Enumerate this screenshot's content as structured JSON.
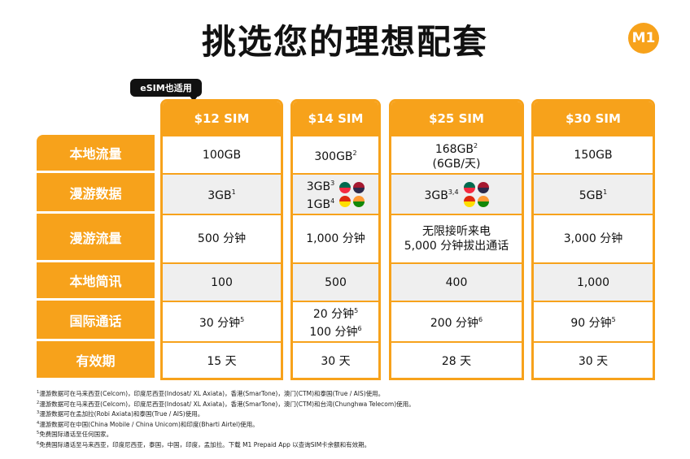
{
  "header": {
    "title": "挑选您的理想配套",
    "logo": "M1"
  },
  "badge": "eSIM也适用",
  "table": {
    "columns": [
      "$12 SIM",
      "$14 SIM",
      "$25 SIM",
      "$30 SIM"
    ],
    "rows": [
      {
        "label": "本地流量",
        "cells": [
          [
            {
              "text": "100GB"
            }
          ],
          [
            {
              "text": "300GB",
              "sup": "2"
            }
          ],
          [
            {
              "text": "168GB",
              "sup": "2"
            },
            {
              "text": "(6GB/天)"
            }
          ],
          [
            {
              "text": "150GB"
            }
          ]
        ]
      },
      {
        "label": "漫游数据",
        "cells": [
          [
            {
              "text": "3GB",
              "sup": "1"
            }
          ],
          [
            {
              "text": "3GB",
              "sup": "3"
            },
            {
              "text": "1GB",
              "sup": "4"
            }
          ],
          [
            {
              "text": "3GB",
              "sup": "3,4"
            }
          ],
          [
            {
              "text": "5GB",
              "sup": "1"
            }
          ]
        ]
      },
      {
        "label": "漫游流量",
        "cells": [
          [
            {
              "text": "500 分钟"
            }
          ],
          [
            {
              "text": "1,000 分钟"
            }
          ],
          [
            {
              "text": "无限接听来电"
            },
            {
              "text": "5,000 分钟拔出通话"
            }
          ],
          [
            {
              "text": "3,000 分钟"
            }
          ]
        ]
      },
      {
        "label": "本地简讯",
        "cells": [
          [
            {
              "text": "100"
            }
          ],
          [
            {
              "text": "500"
            }
          ],
          [
            {
              "text": "400"
            }
          ],
          [
            {
              "text": "1,000"
            }
          ]
        ]
      },
      {
        "label": "国际通话",
        "cells": [
          [
            {
              "text": "30 分钟",
              "sup": "5"
            }
          ],
          [
            {
              "text": "20 分钟",
              "sup": "5"
            },
            {
              "text": "100 分钟",
              "sup": "6"
            }
          ],
          [
            {
              "text": "200 分钟",
              "sup": "6"
            }
          ],
          [
            {
              "text": "90 分钟",
              "sup": "5"
            }
          ]
        ]
      },
      {
        "label": "有效期",
        "cells": [
          [
            {
              "text": "15 天"
            }
          ],
          [
            {
              "text": "30 天"
            }
          ],
          [
            {
              "text": "28 天"
            }
          ],
          [
            {
              "text": "30 天"
            }
          ]
        ]
      }
    ]
  },
  "footnotes": [
    {
      "mark": "1",
      "text": "漫游数据可在马来西亚(Celcom)，印度尼西亚(Indosat/ XL Axiata)，香港(SmarTone)，澳门(CTM)和泰国(True / AIS)使用。"
    },
    {
      "mark": "2",
      "text": "漫游数据可在马来西亚(Celcom)，印度尼西亚(Indosat/ XL Axiata)，香港(SmarTone)，澳门(CTM)和台湾(Chunghwa Telecom)使用。"
    },
    {
      "mark": "3",
      "text": "漫游数据可在孟加拉(Robi Axiata)和泰国(True / AIS)使用。"
    },
    {
      "mark": "4",
      "text": "漫游数据可在中国(China Mobile / China Unicom)和印度(Bharti Airtel)使用。"
    },
    {
      "mark": "5",
      "text": "免费国际通话至任何国家。"
    },
    {
      "mark": "6",
      "text": "免费国际通话至马来西亚，印度尼西亚，泰国，中国，印度，孟加拉。下载 M1 Prepaid App 以查询SIM卡余额和有效期。"
    }
  ]
}
